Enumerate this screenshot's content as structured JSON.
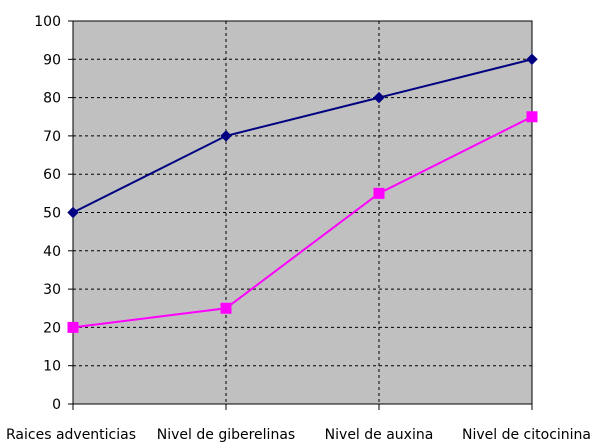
{
  "chart_data": {
    "type": "line",
    "categories": [
      "Raices adventicias",
      "Nivel de giberelinas",
      "Nivel de auxina",
      "Nivel de citocinina"
    ],
    "series": [
      {
        "values": [
          50,
          70,
          80,
          90
        ],
        "color": "#000080",
        "marker": "diamond"
      },
      {
        "values": [
          20,
          25,
          55,
          75
        ],
        "color": "#ff00ff",
        "marker": "square"
      }
    ],
    "ylim": [
      0,
      100
    ],
    "yticks": [
      0,
      10,
      20,
      30,
      40,
      50,
      60,
      70,
      80,
      90,
      100
    ],
    "xlabel": "",
    "ylabel": "",
    "title": "",
    "grid": true,
    "plot_background": "#c0c0c0"
  }
}
